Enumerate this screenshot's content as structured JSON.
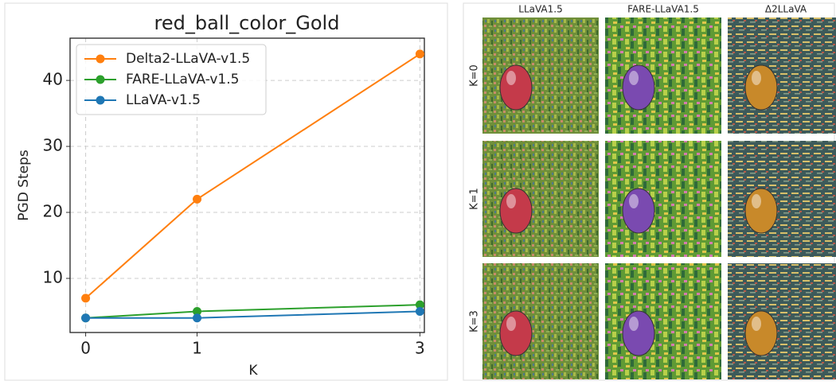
{
  "chart_data": {
    "type": "line",
    "title": "red_ball_color_Gold",
    "x_label": "K",
    "y_label": "PGD Steps",
    "x": [
      0,
      1,
      3
    ],
    "series": [
      {
        "name": "Delta2-LLaVA-v1.5",
        "color": "#ff7f0e",
        "values": [
          7,
          22,
          44
        ]
      },
      {
        "name": "FARE-LLaVA-v1.5",
        "color": "#2ca02c",
        "values": [
          4,
          5,
          6
        ]
      },
      {
        "name": "LLaVA-v1.5",
        "color": "#1f77b4",
        "values": [
          4,
          4,
          5
        ]
      }
    ],
    "xlim": [
      -0.14,
      3.04
    ],
    "xticks": [
      0,
      1,
      3
    ],
    "ylim": [
      1.8,
      46.4
    ],
    "yticks": [
      10,
      20,
      30,
      40
    ],
    "grid": true,
    "legend": "upper-left"
  },
  "image_grid": {
    "columns": [
      "LLaVA1.5",
      "FARE-LLaVA1.5",
      "Δ2LLaVA"
    ],
    "rows": [
      "K=0",
      "K=1",
      "K=3"
    ]
  }
}
